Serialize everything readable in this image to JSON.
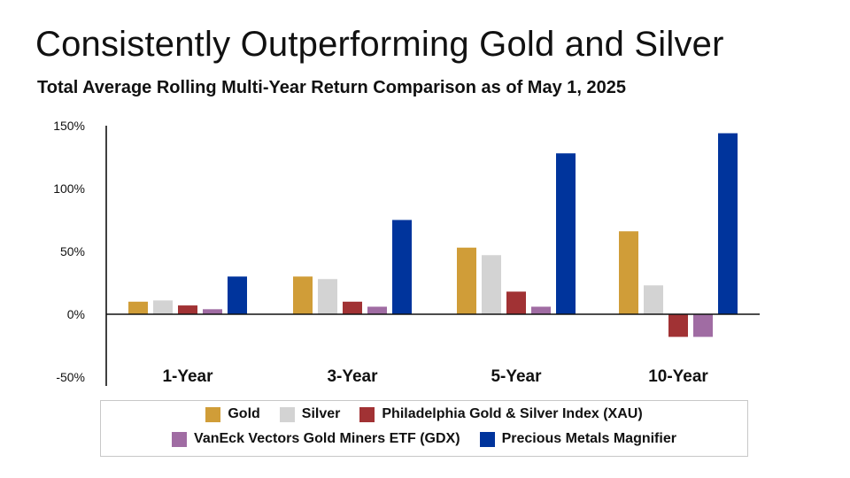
{
  "page": {
    "title": "Consistently Outperforming Gold and Silver",
    "subtitle": "Total Average Rolling Multi-Year Return Comparison as of May 1, 2025"
  },
  "chart_data": {
    "type": "bar",
    "title": "Consistently Outperforming Gold and Silver",
    "subtitle": "Total Average Rolling Multi-Year Return Comparison as of May 1, 2025",
    "categories": [
      "1-Year",
      "3-Year",
      "5-Year",
      "10-Year"
    ],
    "ylim": [
      -50,
      150
    ],
    "yticks": [
      -50,
      0,
      50,
      100,
      150
    ],
    "ytick_labels": [
      "-50%",
      "0%",
      "50%",
      "100%",
      "150%"
    ],
    "grid": false,
    "legend_position": "bottom",
    "series": [
      {
        "name": "Gold",
        "color": "#D09D38",
        "values": [
          10,
          30,
          53,
          66
        ]
      },
      {
        "name": "Silver",
        "color": "#D3D3D3",
        "values": [
          11,
          28,
          47,
          23
        ]
      },
      {
        "name": "Philadelphia Gold & Silver Index (XAU)",
        "color": "#A13234",
        "values": [
          7,
          10,
          18,
          -18
        ]
      },
      {
        "name": "VanEck Vectors Gold Miners ETF (GDX)",
        "color": "#A06CA3",
        "values": [
          4,
          6,
          6,
          -18
        ]
      },
      {
        "name": "Precious Metals Magnifier",
        "color": "#00349C",
        "values": [
          30,
          75,
          128,
          144
        ]
      }
    ]
  }
}
